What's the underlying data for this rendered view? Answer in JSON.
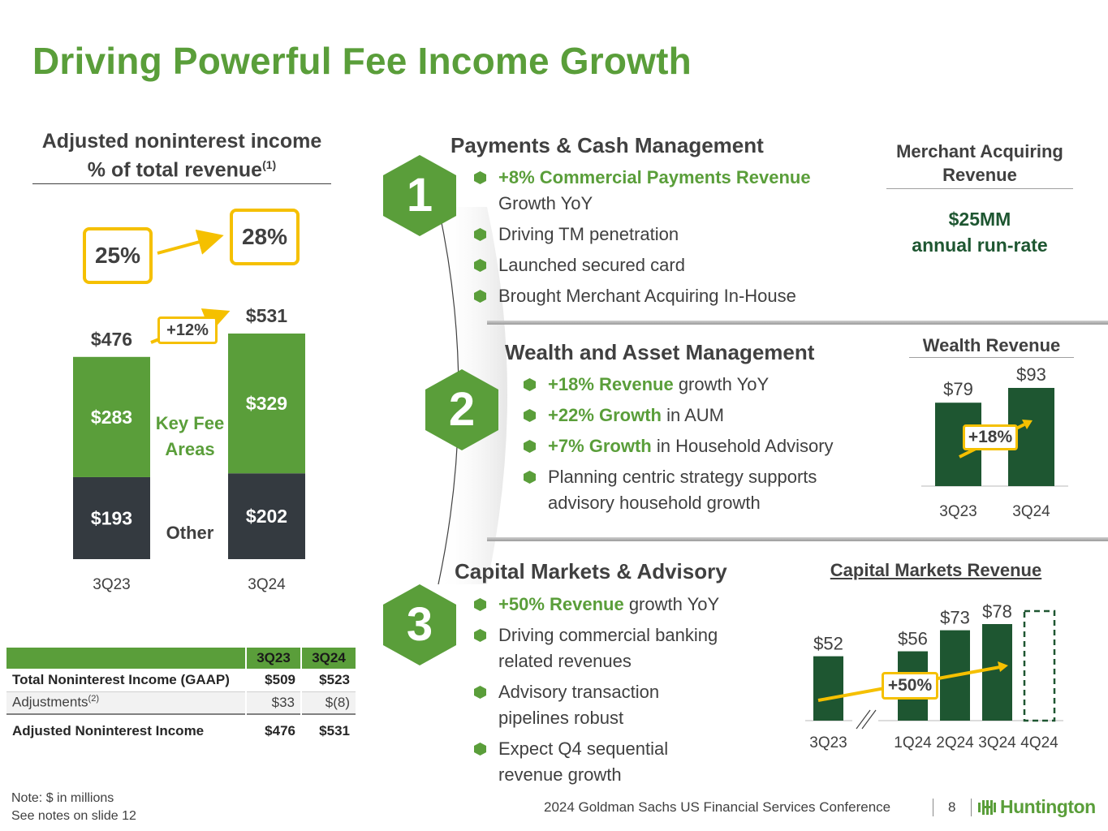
{
  "title": "Driving Powerful Fee Income Growth",
  "left_panel": {
    "header_line1": "Adjusted noninterest income",
    "header_line2": "% of total revenue",
    "header_sup": "(1)",
    "pct_3q23": "25%",
    "pct_3q24": "28%",
    "growth_label": "+12%",
    "key_fee_label_1": "Key Fee",
    "key_fee_label_2": "Areas",
    "other_label": "Other"
  },
  "table": {
    "headers": [
      "",
      "3Q23",
      "3Q24"
    ],
    "rows": [
      {
        "label": "Total Noninterest Income (GAAP)",
        "sup": "",
        "v1": "$509",
        "v2": "$523"
      },
      {
        "label": "Adjustments",
        "sup": "(2)",
        "v1": "$33",
        "v2": "$(8)"
      },
      {
        "label": "Adjusted Noninterest Income",
        "sup": "",
        "v1": "$476",
        "v2": "$531"
      }
    ]
  },
  "notes": {
    "line1": "Note: $ in millions",
    "line2": "See notes on slide 12"
  },
  "section1": {
    "badge": "1",
    "title": "Payments & Cash Management",
    "bullet1_highlight": "+8% Commercial Payments Revenue",
    "bullet1_rest": "Growth YoY",
    "bullet2": "Driving TM penetration",
    "bullet3": "Launched secured card",
    "bullet4": "Brought Merchant Acquiring In-House",
    "side_title_1": "Merchant Acquiring",
    "side_title_2": "Revenue",
    "side_value_1": "$25MM",
    "side_value_2": "annual run-rate"
  },
  "section2": {
    "badge": "2",
    "title": "Wealth and Asset Management",
    "bullet1_highlight": "+18% Revenue",
    "bullet1_rest": " growth YoY",
    "bullet2_highlight": "+22% Growth",
    "bullet2_rest": " in AUM",
    "bullet3_highlight": "+7% Growth",
    "bullet3_rest": " in Household Advisory",
    "bullet4_line1": "Planning centric strategy supports",
    "bullet4_line2": "advisory household growth",
    "chart_title": "Wealth Revenue",
    "growth_label": "+18%"
  },
  "section3": {
    "badge": "3",
    "title": "Capital Markets & Advisory",
    "bullet1_highlight": "+50% Revenue",
    "bullet1_rest": " growth YoY",
    "bullet2_line1": "Driving commercial banking",
    "bullet2_line2": "related revenues",
    "bullet3_line1": "Advisory transaction",
    "bullet3_line2": "pipelines robust",
    "bullet4_line1": "Expect Q4 sequential",
    "bullet4_line2": "revenue growth",
    "chart_title": "Capital Markets Revenue",
    "growth_label": "+50%"
  },
  "footer": {
    "conference": "2024 Goldman Sachs US Financial Services Conference",
    "page": "8",
    "logo_text": "Huntington"
  },
  "colors": {
    "brand_green": "#5a9e3a",
    "dark_green": "#1e5631",
    "dark_gray": "#343a40",
    "accent_yellow": "#f5c000"
  },
  "chart_data": [
    {
      "type": "bar",
      "stacked": true,
      "categories": [
        "3Q23",
        "3Q24"
      ],
      "series": [
        {
          "name": "Other",
          "values": [
            193,
            202
          ],
          "labels": [
            "$193",
            "$202"
          ],
          "color": "#343a40"
        },
        {
          "name": "Key Fee Areas",
          "values": [
            283,
            329
          ],
          "labels": [
            "$283",
            "$329"
          ],
          "color": "#5a9e3a"
        }
      ],
      "totals": [
        476,
        531
      ],
      "total_labels": [
        "$476",
        "$531"
      ],
      "growth": "+12%"
    },
    {
      "type": "bar",
      "title": "Wealth Revenue",
      "categories": [
        "3Q23",
        "3Q24"
      ],
      "values": [
        79,
        93
      ],
      "labels": [
        "$79",
        "$93"
      ],
      "growth": "+18%"
    },
    {
      "type": "bar",
      "title": "Capital Markets Revenue",
      "categories": [
        "3Q23",
        "1Q24",
        "2Q24",
        "3Q24",
        "4Q24"
      ],
      "values": [
        52,
        56,
        73,
        78,
        null
      ],
      "labels": [
        "$52",
        "$56",
        "$73",
        "$78",
        ""
      ],
      "axis_break_after": "3Q23",
      "projected_category": "4Q24",
      "growth": "+50%"
    }
  ]
}
